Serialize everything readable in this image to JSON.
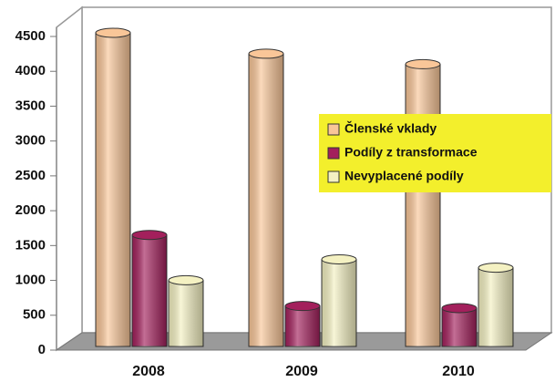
{
  "chart_data": {
    "type": "bar",
    "categories": [
      "2008",
      "2009",
      "2010"
    ],
    "series": [
      {
        "name": "Členské vklady",
        "color": "#f9c698",
        "values": [
          4500,
          4200,
          4050
        ]
      },
      {
        "name": "Podíly z transformace",
        "color": "#a3205c",
        "values": [
          1600,
          580,
          550
        ]
      },
      {
        "name": "Nevyplacené podíly",
        "color": "#f4f1c2",
        "values": [
          950,
          1250,
          1130
        ]
      }
    ],
    "ylim": [
      0,
      4500
    ],
    "yticks": [
      0,
      500,
      1000,
      1500,
      2000,
      2500,
      3000,
      3500,
      4000,
      4500
    ],
    "legend": "right",
    "legend_color": "#f3ef2c"
  }
}
